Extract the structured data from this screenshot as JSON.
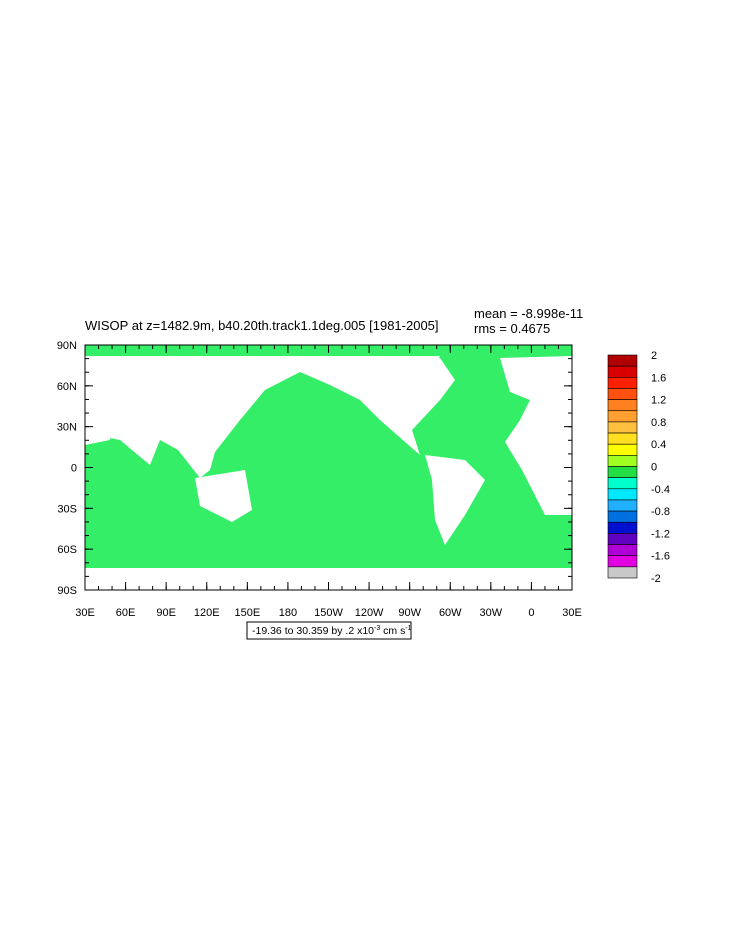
{
  "title": "WISOP at z=1482.9m, b40.20th.track1.1deg.005 [1981-2005]",
  "stats": {
    "mean": "mean = -8.998e-11",
    "rms": "rms = 0.4675"
  },
  "map": {
    "lat_labels": [
      "90N",
      "60N",
      "30N",
      "0",
      "30S",
      "60S",
      "90S"
    ],
    "lon_labels": [
      "30E",
      "60E",
      "90E",
      "120E",
      "150E",
      "180",
      "150W",
      "120W",
      "90W",
      "60W",
      "30W",
      "0",
      "30E"
    ],
    "field_color": "#33ee66"
  },
  "colorbar": {
    "labels": [
      "2",
      "1.6",
      "1.2",
      "0.8",
      "0.4",
      "0",
      "-0.4",
      "-0.8",
      "-1.2",
      "-1.6",
      "-2"
    ],
    "colors": [
      "#b00000",
      "#d80000",
      "#ff2000",
      "#ff5010",
      "#ff8020",
      "#ffa030",
      "#ffc040",
      "#ffe020",
      "#ffff00",
      "#a0ff20",
      "#22dd44",
      "#00ffcc",
      "#00e8ff",
      "#20b0ff",
      "#0070e0",
      "#0010d0",
      "#6000c0",
      "#b000d8",
      "#e000e0",
      "#c8c8c8"
    ]
  },
  "info": {
    "text": "-19.36 to 30.359 by .2 x10",
    "exponent": "-3",
    "units": " cm s",
    "units_exponent": "-1"
  }
}
